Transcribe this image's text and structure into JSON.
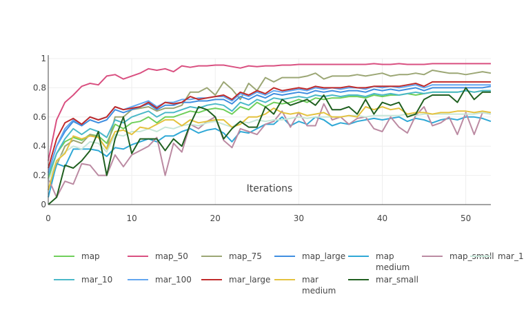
{
  "chart_data": {
    "type": "line",
    "title": "",
    "xlabel": "Iterations",
    "ylabel": "",
    "xlim": [
      0,
      53
    ],
    "ylim": [
      0,
      1
    ],
    "xticks": [
      0,
      10,
      20,
      30,
      40,
      50
    ],
    "yticks": [
      0,
      0.2,
      0.4,
      0.6,
      0.8,
      1
    ],
    "ytick_labels": [
      "0",
      "0.2",
      "0.4",
      "0.6",
      "0.8",
      "1"
    ],
    "grid": true,
    "legend_position": "bottom",
    "x": [
      0,
      1,
      2,
      3,
      4,
      5,
      6,
      7,
      8,
      9,
      10,
      11,
      12,
      13,
      14,
      15,
      16,
      17,
      18,
      19,
      20,
      21,
      22,
      23,
      24,
      25,
      26,
      27,
      28,
      29,
      30,
      31,
      32,
      33,
      34,
      35,
      36,
      37,
      38,
      39,
      40,
      41,
      42,
      43,
      44,
      45,
      46,
      47,
      48,
      49,
      50,
      51,
      52,
      53
    ],
    "series": [
      {
        "name": "map",
        "color": "#6fcf5a",
        "values": [
          0.18,
          0.35,
          0.43,
          0.46,
          0.44,
          0.48,
          0.47,
          0.42,
          0.55,
          0.52,
          0.56,
          0.57,
          0.6,
          0.56,
          0.6,
          0.6,
          0.62,
          0.64,
          0.63,
          0.65,
          0.66,
          0.65,
          0.62,
          0.67,
          0.65,
          0.7,
          0.67,
          0.7,
          0.69,
          0.7,
          0.72,
          0.7,
          0.73,
          0.72,
          0.73,
          0.73,
          0.74,
          0.74,
          0.73,
          0.75,
          0.74,
          0.75,
          0.75,
          0.76,
          0.75,
          0.76,
          0.77,
          0.77,
          0.77,
          0.77,
          0.78,
          0.77,
          0.78,
          0.78
        ]
      },
      {
        "name": "map_50",
        "color": "#d94f80",
        "values": [
          0.3,
          0.58,
          0.7,
          0.75,
          0.81,
          0.83,
          0.82,
          0.88,
          0.89,
          0.86,
          0.88,
          0.9,
          0.93,
          0.92,
          0.93,
          0.91,
          0.95,
          0.94,
          0.95,
          0.95,
          0.955,
          0.955,
          0.945,
          0.935,
          0.95,
          0.945,
          0.95,
          0.95,
          0.955,
          0.955,
          0.96,
          0.96,
          0.96,
          0.96,
          0.96,
          0.96,
          0.96,
          0.96,
          0.96,
          0.965,
          0.96,
          0.96,
          0.965,
          0.96,
          0.96,
          0.96,
          0.965,
          0.965,
          0.965,
          0.965,
          0.965,
          0.965,
          0.965,
          0.965
        ]
      },
      {
        "name": "map_75",
        "color": "#9ba674",
        "values": [
          0.1,
          0.27,
          0.4,
          0.44,
          0.42,
          0.48,
          0.46,
          0.38,
          0.6,
          0.6,
          0.65,
          0.66,
          0.67,
          0.64,
          0.66,
          0.66,
          0.68,
          0.77,
          0.77,
          0.8,
          0.75,
          0.84,
          0.79,
          0.72,
          0.83,
          0.78,
          0.87,
          0.84,
          0.87,
          0.87,
          0.87,
          0.88,
          0.9,
          0.86,
          0.88,
          0.88,
          0.88,
          0.89,
          0.88,
          0.89,
          0.9,
          0.88,
          0.89,
          0.89,
          0.9,
          0.89,
          0.92,
          0.91,
          0.9,
          0.9,
          0.89,
          0.9,
          0.91,
          0.9
        ]
      },
      {
        "name": "map_large",
        "color": "#3f8ee0",
        "values": [
          0.22,
          0.4,
          0.5,
          0.57,
          0.54,
          0.58,
          0.56,
          0.58,
          0.65,
          0.63,
          0.65,
          0.67,
          0.69,
          0.65,
          0.68,
          0.68,
          0.7,
          0.7,
          0.71,
          0.71,
          0.72,
          0.72,
          0.69,
          0.74,
          0.72,
          0.75,
          0.73,
          0.76,
          0.75,
          0.76,
          0.77,
          0.76,
          0.78,
          0.77,
          0.78,
          0.77,
          0.78,
          0.78,
          0.77,
          0.79,
          0.78,
          0.79,
          0.78,
          0.79,
          0.8,
          0.78,
          0.8,
          0.8,
          0.8,
          0.8,
          0.8,
          0.8,
          0.8,
          0.81
        ]
      },
      {
        "name": "map\nmedium",
        "color": "#2fa8d6",
        "values": [
          0.05,
          0.28,
          0.26,
          0.38,
          0.38,
          0.38,
          0.37,
          0.33,
          0.39,
          0.38,
          0.41,
          0.43,
          0.45,
          0.43,
          0.47,
          0.47,
          0.5,
          0.52,
          0.49,
          0.51,
          0.52,
          0.49,
          0.43,
          0.5,
          0.49,
          0.52,
          0.55,
          0.55,
          0.6,
          0.54,
          0.57,
          0.55,
          0.6,
          0.58,
          0.54,
          0.56,
          0.55,
          0.57,
          0.58,
          0.59,
          0.58,
          0.59,
          0.6,
          0.57,
          0.59,
          0.58,
          0.56,
          0.58,
          0.59,
          0.58,
          0.6,
          0.6,
          0.59,
          0.57
        ]
      },
      {
        "name": "map_small",
        "color": "#bb8aa2",
        "values": [
          0.18,
          0.05,
          0.16,
          0.14,
          0.28,
          0.27,
          0.2,
          0.2,
          0.34,
          0.26,
          0.34,
          0.37,
          0.4,
          0.46,
          0.2,
          0.42,
          0.36,
          0.55,
          0.52,
          0.57,
          0.6,
          0.44,
          0.39,
          0.52,
          0.5,
          0.48,
          0.55,
          0.57,
          0.64,
          0.53,
          0.63,
          0.54,
          0.54,
          0.69,
          0.58,
          0.6,
          0.55,
          0.59,
          0.6,
          0.52,
          0.5,
          0.6,
          0.53,
          0.49,
          0.61,
          0.67,
          0.54,
          0.56,
          0.6,
          0.48,
          0.63,
          0.48,
          0.63,
          0.62
        ]
      },
      {
        "name": "mar_1",
        "color": "#c6e6d8",
        "values": [
          0.16,
          0.3,
          0.36,
          0.4,
          0.38,
          0.43,
          0.42,
          0.36,
          0.48,
          0.47,
          0.5,
          0.5,
          0.52,
          0.5,
          0.53,
          0.52,
          0.54,
          0.55,
          0.54,
          0.56,
          0.57,
          0.55,
          0.53,
          0.57,
          0.56,
          0.58,
          0.57,
          0.58,
          0.58,
          0.59,
          0.6,
          0.59,
          0.6,
          0.6,
          0.6,
          0.6,
          0.61,
          0.61,
          0.6,
          0.61,
          0.61,
          0.61,
          0.61,
          0.62,
          0.61,
          0.62,
          0.62,
          0.62,
          0.62,
          0.62,
          0.62,
          0.62,
          0.63,
          0.62
        ]
      },
      {
        "name": "mar_10",
        "color": "#4ab8c8",
        "values": [
          0.2,
          0.35,
          0.45,
          0.52,
          0.48,
          0.52,
          0.5,
          0.46,
          0.58,
          0.56,
          0.6,
          0.62,
          0.64,
          0.6,
          0.63,
          0.63,
          0.65,
          0.67,
          0.66,
          0.68,
          0.69,
          0.68,
          0.64,
          0.7,
          0.68,
          0.72,
          0.7,
          0.73,
          0.72,
          0.73,
          0.74,
          0.73,
          0.75,
          0.74,
          0.75,
          0.74,
          0.75,
          0.75,
          0.74,
          0.76,
          0.75,
          0.76,
          0.75,
          0.76,
          0.77,
          0.76,
          0.77,
          0.77,
          0.77,
          0.77,
          0.78,
          0.77,
          0.78,
          0.78
        ]
      },
      {
        "name": "mar_100",
        "color": "#62a6f0",
        "values": [
          0.22,
          0.4,
          0.52,
          0.58,
          0.55,
          0.6,
          0.58,
          0.6,
          0.67,
          0.65,
          0.67,
          0.69,
          0.71,
          0.67,
          0.7,
          0.7,
          0.72,
          0.72,
          0.73,
          0.73,
          0.74,
          0.74,
          0.71,
          0.76,
          0.74,
          0.77,
          0.75,
          0.78,
          0.77,
          0.78,
          0.79,
          0.78,
          0.8,
          0.79,
          0.8,
          0.79,
          0.8,
          0.8,
          0.79,
          0.81,
          0.8,
          0.81,
          0.8,
          0.81,
          0.82,
          0.8,
          0.82,
          0.82,
          0.82,
          0.82,
          0.82,
          0.82,
          0.82,
          0.82
        ]
      },
      {
        "name": "mar_large",
        "color": "#c02a2a",
        "values": [
          0.25,
          0.45,
          0.56,
          0.59,
          0.55,
          0.6,
          0.58,
          0.6,
          0.67,
          0.65,
          0.66,
          0.67,
          0.7,
          0.66,
          0.7,
          0.69,
          0.7,
          0.74,
          0.72,
          0.73,
          0.74,
          0.75,
          0.72,
          0.77,
          0.75,
          0.78,
          0.76,
          0.8,
          0.78,
          0.79,
          0.8,
          0.79,
          0.81,
          0.8,
          0.8,
          0.8,
          0.81,
          0.8,
          0.8,
          0.81,
          0.81,
          0.81,
          0.81,
          0.82,
          0.83,
          0.81,
          0.84,
          0.84,
          0.84,
          0.84,
          0.84,
          0.84,
          0.84,
          0.84
        ]
      },
      {
        "name": "mar\nmedium",
        "color": "#e4c23e",
        "values": [
          0.1,
          0.3,
          0.35,
          0.47,
          0.45,
          0.47,
          0.46,
          0.38,
          0.5,
          0.51,
          0.48,
          0.53,
          0.52,
          0.55,
          0.58,
          0.58,
          0.54,
          0.58,
          0.56,
          0.57,
          0.58,
          0.58,
          0.53,
          0.55,
          0.6,
          0.6,
          0.62,
          0.66,
          0.63,
          0.62,
          0.63,
          0.61,
          0.62,
          0.63,
          0.6,
          0.6,
          0.61,
          0.6,
          0.67,
          0.65,
          0.67,
          0.65,
          0.66,
          0.62,
          0.63,
          0.63,
          0.62,
          0.63,
          0.63,
          0.64,
          0.64,
          0.63,
          0.64,
          0.63
        ]
      },
      {
        "name": "mar_small",
        "color": "#1f5f1f",
        "values": [
          0.0,
          0.05,
          0.27,
          0.25,
          0.3,
          0.37,
          0.5,
          0.2,
          0.45,
          0.6,
          0.35,
          0.45,
          0.45,
          0.45,
          0.37,
          0.45,
          0.4,
          0.55,
          0.67,
          0.65,
          0.6,
          0.45,
          0.52,
          0.57,
          0.53,
          0.53,
          0.67,
          0.62,
          0.72,
          0.68,
          0.7,
          0.72,
          0.68,
          0.75,
          0.65,
          0.65,
          0.67,
          0.62,
          0.72,
          0.62,
          0.7,
          0.68,
          0.7,
          0.6,
          0.62,
          0.72,
          0.75,
          0.75,
          0.75,
          0.7,
          0.8,
          0.72,
          0.77,
          0.77
        ]
      }
    ]
  }
}
